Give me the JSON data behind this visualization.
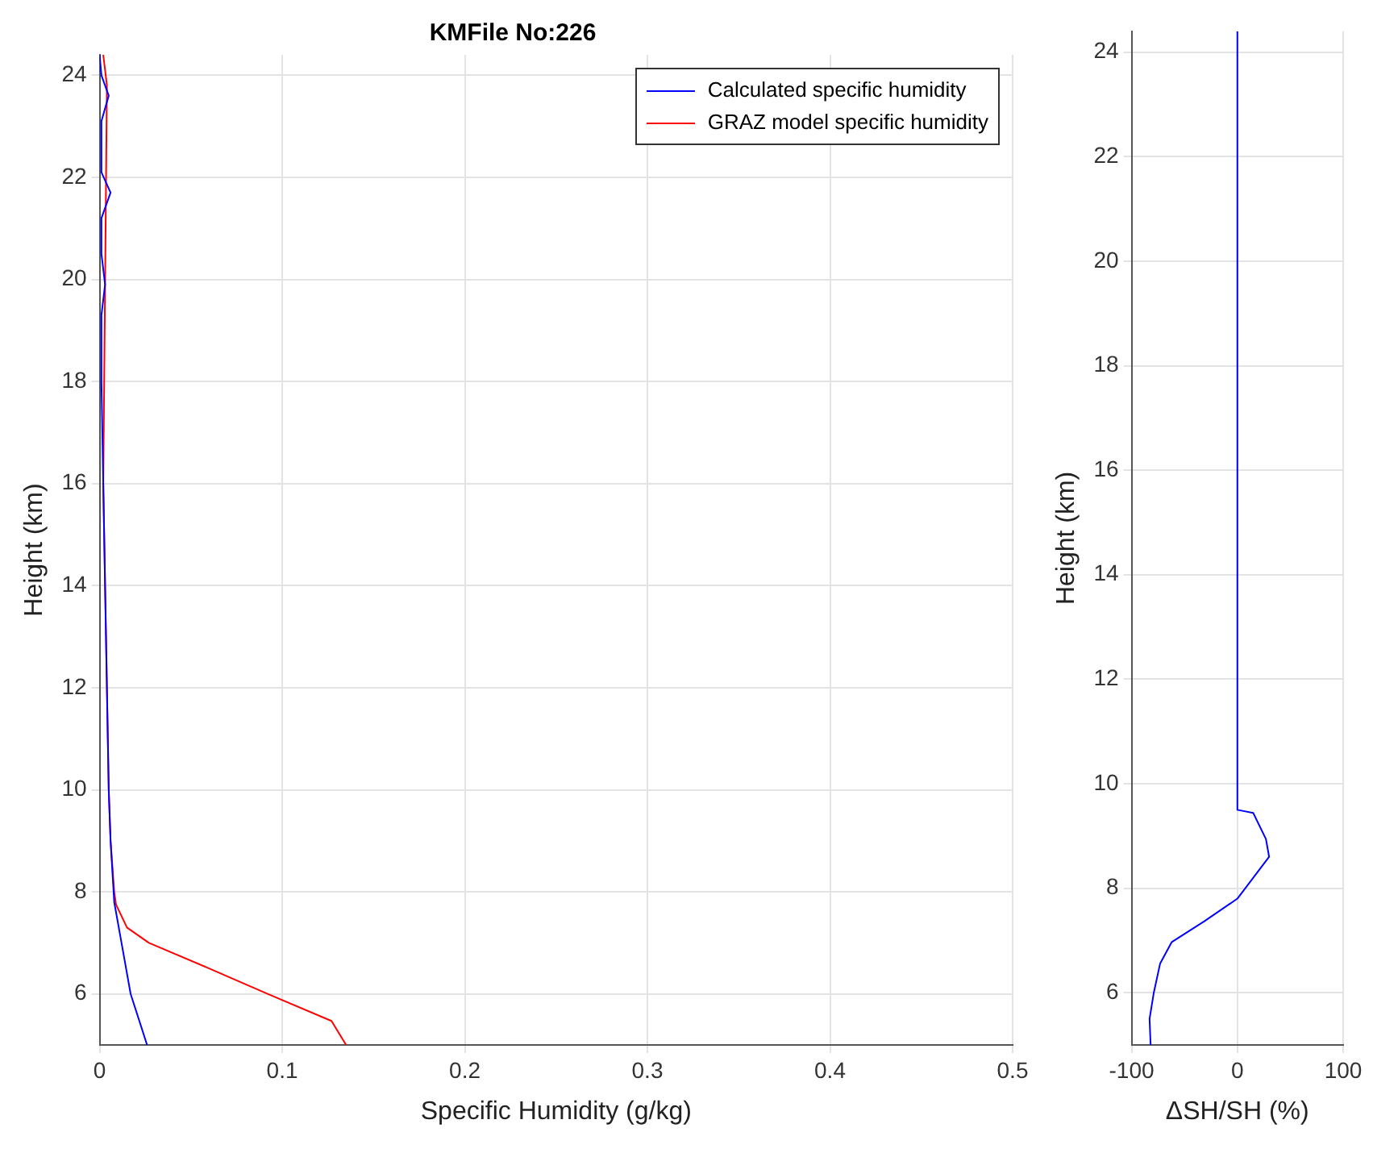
{
  "chart_data": [
    {
      "type": "line",
      "title": "KMFile No:226",
      "xlabel": "Specific Humidity (g/kg)",
      "ylabel": "Height (km)",
      "xlim": [
        0,
        0.5
      ],
      "xticks": [
        0,
        0.1,
        0.2,
        0.3,
        0.4,
        0.5
      ],
      "ylim": [
        5,
        24.4
      ],
      "yticks": [
        6,
        8,
        10,
        12,
        14,
        16,
        18,
        20,
        22,
        24
      ],
      "grid": true,
      "legend": "top right",
      "series": [
        {
          "name": "Calculated specific humidity",
          "color": "#0000ff",
          "x": [
            0.026,
            0.017,
            0.012,
            0.008,
            0.006,
            0.005,
            0.004,
            0.003,
            0.002,
            0.001,
            0.001,
            0.003,
            0.001,
            0.001,
            0.006,
            0.001,
            0.001,
            0.005,
            0.001,
            0.0
          ],
          "values": [
            5,
            6,
            7,
            7.8,
            9,
            10,
            12,
            14,
            16,
            18,
            19.3,
            19.9,
            20.5,
            21.2,
            21.7,
            22.1,
            23.1,
            23.6,
            24,
            24.4
          ]
        },
        {
          "name": "GRAZ model specific humidity",
          "color": "#ff0000",
          "x": [
            0.135,
            0.127,
            0.092,
            0.06,
            0.027,
            0.015,
            0.009,
            0.008,
            0.006,
            0.005,
            0.004,
            0.003,
            0.002,
            0.004,
            0.002
          ],
          "values": [
            5,
            5.47,
            6,
            6.5,
            7,
            7.3,
            7.75,
            8,
            9,
            10,
            12,
            14,
            16,
            23.8,
            24.4
          ]
        }
      ]
    },
    {
      "type": "line",
      "xlabel": "ΔSH/SH (%)",
      "ylabel": "Height (km)",
      "xlim": [
        -100,
        100
      ],
      "xticks": [
        -100,
        0,
        100
      ],
      "ylim": [
        5,
        24.4
      ],
      "yticks": [
        6,
        8,
        10,
        12,
        14,
        16,
        18,
        20,
        22,
        24
      ],
      "grid": true,
      "series": [
        {
          "color": "#0000ff",
          "x": [
            -82,
            -83,
            -79,
            -73,
            -62,
            -31,
            0,
            30,
            27,
            15,
            0,
            0
          ],
          "values": [
            5,
            5.5,
            6,
            6.56,
            6.97,
            7.37,
            7.8,
            8.6,
            8.94,
            9.44,
            9.5,
            24.4
          ]
        }
      ]
    }
  ]
}
